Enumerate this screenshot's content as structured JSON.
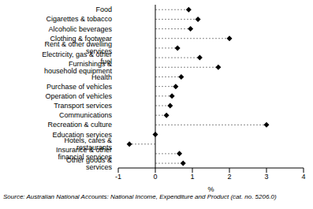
{
  "chart_data": {
    "type": "dot",
    "orientation": "horizontal",
    "categories": [
      "Food",
      "Cigarettes & tobacco",
      "Alcoholic beverages",
      "Clothing & footwear",
      "Rent & other dwelling services",
      "Electricity, gas & other fuel",
      "Furnishings & household equipment",
      "Health",
      "Purchase of vehicles",
      "Operation of vehicles",
      "Transport services",
      "Communications",
      "Recreation & culture",
      "Education services",
      "Hotels, cafes & restaurants",
      "Insurance & other financial services",
      "Other goods & services"
    ],
    "values": [
      0.9,
      1.15,
      0.95,
      2.0,
      0.6,
      1.2,
      1.7,
      0.7,
      0.55,
      0.45,
      0.4,
      0.3,
      3.0,
      0.0,
      -0.7,
      0.65,
      0.75
    ],
    "color": "#000000",
    "marker": "diamond",
    "line_style": "dashed",
    "x_label": "%",
    "xlim": [
      -1,
      4
    ],
    "xticks": [
      -1,
      0,
      1,
      2,
      3,
      4
    ],
    "annotations": [
      "Source: Australian National Accounts: National Income, Expenditure and Product (cat. no. 5206.0)"
    ]
  }
}
